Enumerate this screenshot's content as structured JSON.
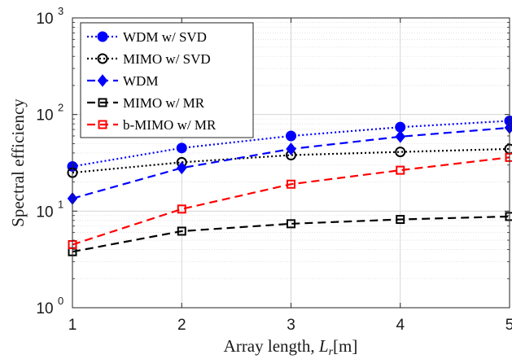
{
  "chart_data": {
    "type": "line",
    "title": "",
    "xlabel": "Array length, ",
    "xlabel_var": "L",
    "xlabel_sub": "r",
    "xlabel_unit": "[m]",
    "ylabel": "Spectral efficiency",
    "x": [
      1,
      2,
      3,
      4,
      5
    ],
    "xlim": [
      1,
      5
    ],
    "ylim": [
      1,
      1000
    ],
    "yscale": "log",
    "xticks": [
      "1",
      "2",
      "3",
      "4",
      "5"
    ],
    "yticks": [
      {
        "base": "10",
        "exp": "0",
        "value": 1
      },
      {
        "base": "10",
        "exp": "1",
        "value": 10
      },
      {
        "base": "10",
        "exp": "2",
        "value": 100
      },
      {
        "base": "10",
        "exp": "3",
        "value": 1000
      }
    ],
    "grid": true,
    "legend_position": "top-left",
    "series": [
      {
        "name": "WDM w/ SVD",
        "values": [
          29,
          45,
          60,
          74,
          86
        ],
        "color": "#0000ff",
        "dash": "dotted",
        "marker": "filled-circle"
      },
      {
        "name": "MIMO w/ SVD",
        "values": [
          25,
          32,
          38,
          41,
          44
        ],
        "color": "#000000",
        "dash": "dotted",
        "marker": "open-circle"
      },
      {
        "name": "WDM",
        "values": [
          13.5,
          28,
          44,
          59,
          73
        ],
        "color": "#0000ff",
        "dash": "dashed",
        "marker": "filled-diamond"
      },
      {
        "name": "MIMO w/ MR",
        "values": [
          3.8,
          6.2,
          7.4,
          8.2,
          8.8
        ],
        "color": "#000000",
        "dash": "dashed",
        "marker": "open-square"
      },
      {
        "name": "b-MIMO w/ MR",
        "values": [
          4.5,
          10.5,
          19,
          26.5,
          36
        ],
        "color": "#ff0000",
        "dash": "dashed",
        "marker": "open-square"
      }
    ]
  }
}
